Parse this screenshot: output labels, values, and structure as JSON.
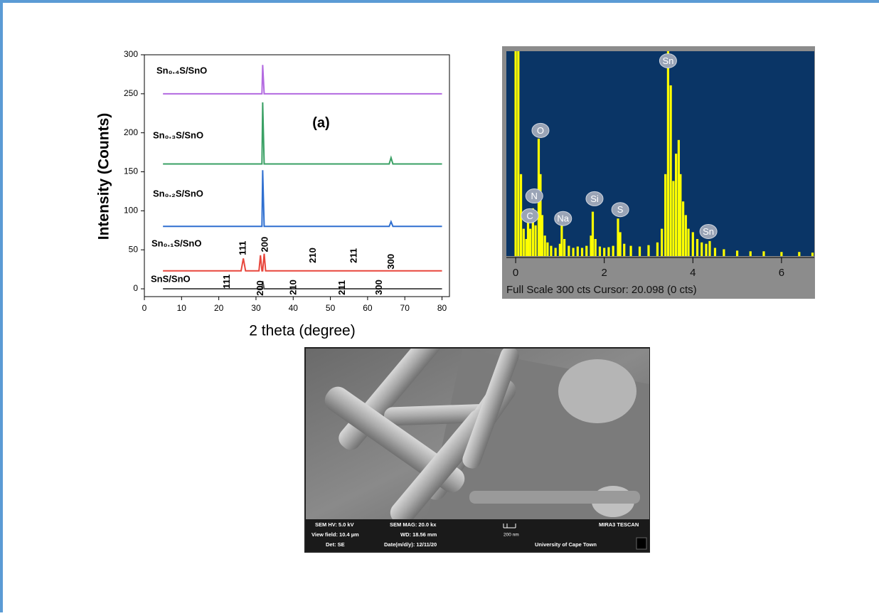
{
  "chart_data": [
    {
      "type": "line",
      "x_label": "2 theta (degree)",
      "y_label": "Intensity (Counts)",
      "panel_label": {
        "text": "(a)",
        "x": 47.5,
        "y": 212
      },
      "x": [
        5,
        26,
        26.6,
        27.2,
        30.8,
        31.2,
        31.6,
        31.8,
        32.2,
        32.6,
        65.8,
        66.3,
        66.8,
        80
      ],
      "series": [
        {
          "name": "SnS/SnO",
          "color": "#555555",
          "values": [
            0,
            0,
            0,
            0,
            0,
            0,
            0,
            10,
            0,
            0,
            0,
            0,
            0,
            0
          ]
        },
        {
          "name": "Sn₀.₁S/SnO",
          "color": "#e8463c",
          "values": [
            23,
            23,
            39,
            23,
            23,
            43,
            23,
            23,
            45,
            23,
            23,
            23,
            23,
            23
          ]
        },
        {
          "name": "Sn₀.₂S/SnO",
          "color": "#2f6fd0",
          "values": [
            80,
            80,
            80,
            80,
            80,
            80,
            80,
            152,
            80,
            80,
            80,
            86,
            80,
            80
          ]
        },
        {
          "name": "Sn₀.₃S/SnO",
          "color": "#3aa064",
          "values": [
            160,
            160,
            160,
            160,
            160,
            160,
            160,
            239,
            160,
            160,
            160,
            168,
            160,
            160
          ]
        },
        {
          "name": "Sn₀.₄S/SnO",
          "color": "#b36ae0",
          "values": [
            250,
            250,
            250,
            250,
            250,
            250,
            250,
            287,
            250,
            250,
            250,
            250,
            250,
            250
          ]
        }
      ],
      "annotations": [
        {
          "text": "111",
          "x": 22.3,
          "y": 0
        },
        {
          "text": "200",
          "x": 31.3,
          "y": -9
        },
        {
          "text": "210",
          "x": 40.2,
          "y": -8
        },
        {
          "text": "211",
          "x": 53.2,
          "y": -8
        },
        {
          "text": "300",
          "x": 63.2,
          "y": -8
        },
        {
          "text": "111",
          "x": 26.6,
          "y": 43
        },
        {
          "text": "200",
          "x": 32.5,
          "y": 47
        },
        {
          "text": "210",
          "x": 45.4,
          "y": 33
        },
        {
          "text": "211",
          "x": 56.4,
          "y": 33
        },
        {
          "text": "300",
          "x": 66.4,
          "y": 25
        }
      ],
      "xlim": [
        0,
        82
      ],
      "xticks": [
        0,
        10,
        20,
        30,
        40,
        50,
        60,
        70,
        80
      ],
      "ylim": [
        -10,
        300
      ],
      "yticks": [
        0,
        50,
        100,
        150,
        200,
        250,
        300
      ]
    },
    {
      "type": "bar",
      "color": "#ffff00",
      "background": "#0a3566",
      "x": [
        0.0,
        0.06,
        0.12,
        0.18,
        0.24,
        0.28,
        0.33,
        0.39,
        0.45,
        0.52,
        0.56,
        0.6,
        0.66,
        0.72,
        0.8,
        0.9,
        1.0,
        1.04,
        1.1,
        1.2,
        1.3,
        1.4,
        1.5,
        1.6,
        1.7,
        1.74,
        1.8,
        1.9,
        2.0,
        2.1,
        2.2,
        2.31,
        2.36,
        2.45,
        2.6,
        2.8,
        3.0,
        3.2,
        3.3,
        3.38,
        3.44,
        3.5,
        3.56,
        3.62,
        3.68,
        3.72,
        3.78,
        3.84,
        3.9,
        4.0,
        4.1,
        4.2,
        4.3,
        4.38,
        4.5,
        4.7,
        5.0,
        5.3,
        5.6,
        6.0,
        6.4,
        6.7
      ],
      "values": [
        300,
        300,
        120,
        40,
        25,
        50,
        40,
        70,
        45,
        172,
        120,
        60,
        30,
        20,
        15,
        12,
        18,
        45,
        25,
        15,
        12,
        14,
        12,
        15,
        30,
        65,
        25,
        14,
        12,
        13,
        15,
        55,
        35,
        18,
        15,
        14,
        16,
        20,
        40,
        120,
        300,
        250,
        110,
        150,
        170,
        120,
        80,
        60,
        40,
        35,
        25,
        20,
        18,
        22,
        12,
        10,
        8,
        7,
        7,
        6,
        6,
        5
      ],
      "annotations": [
        {
          "text": "C",
          "x": 0.32,
          "y": 59
        },
        {
          "text": "N",
          "x": 0.42,
          "y": 88
        },
        {
          "text": "O",
          "x": 0.56,
          "y": 184
        },
        {
          "text": "Na",
          "x": 1.07,
          "y": 55
        },
        {
          "text": "Si",
          "x": 1.78,
          "y": 84
        },
        {
          "text": "S",
          "x": 2.36,
          "y": 68
        },
        {
          "text": "Sn",
          "x": 3.44,
          "y": 286
        },
        {
          "text": "Sn",
          "x": 4.35,
          "y": 36
        }
      ],
      "footer": "Full Scale 300 cts Cursor: 20.098  (0 cts)",
      "xlim": [
        -0.21,
        6.74
      ],
      "xticks": [
        0,
        2,
        4,
        6
      ],
      "ylim": [
        0,
        300
      ]
    }
  ],
  "sem_image": {
    "info": [
      [
        "SEM HV: 5.0 kV",
        "SEM MAG: 20.0 kx",
        "MIRA3 TESCAN"
      ],
      [
        "View field: 10.4 µm",
        "WD: 18.56 mm"
      ],
      [
        "Det: SE",
        "Date(m/d/y): 12/11/20",
        "University of Cape Town"
      ]
    ],
    "scale_bar": "200 nm"
  }
}
